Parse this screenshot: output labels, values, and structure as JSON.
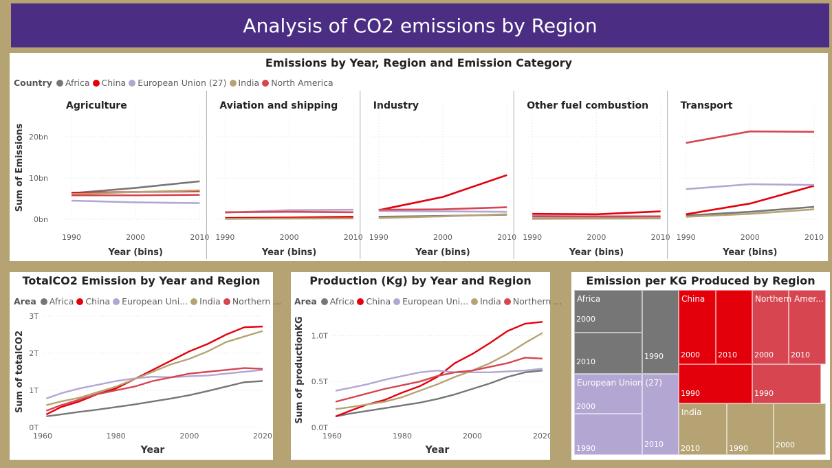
{
  "page_title": "Analysis of CO2 emissions by Region",
  "top": {
    "title": "Emissions by Year, Region and Emission Category",
    "legend_title": "Country",
    "yaxis_title": "Sum of Emissions",
    "xaxis_title": "Year (bins)"
  },
  "total": {
    "title": "TotalCO2 Emission by Year and Region",
    "legend_title": "Area",
    "yaxis_title": "Sum of totalCO2",
    "xaxis_title": "Year"
  },
  "prod": {
    "title": "Production (Kg) by Year and Region",
    "legend_title": "Area",
    "yaxis_title": "Sum of productionKG",
    "xaxis_title": "Year"
  },
  "tree": {
    "title": "Emission per KG Produced by Region"
  },
  "colors": {
    "Africa": "#767676",
    "China": "#e3000b",
    "European Union (27)": "#b3a6d3",
    "India": "#b5a373",
    "North America": "#d64550",
    "banner": "#4b2e83"
  },
  "chart_data": [
    {
      "type": "line",
      "title": "Emissions by Year, Region and Emission Category",
      "xlabel": "Year (bins)",
      "ylabel": "Sum of Emissions",
      "legend_title": "Country",
      "legend": [
        "Africa",
        "China",
        "European Union (27)",
        "India",
        "North America"
      ],
      "y_ticks": [
        "0bn",
        "10bn",
        "20bn"
      ],
      "ylim": [
        0,
        25
      ],
      "x": [
        "1990",
        "2000",
        "2010"
      ],
      "facets": [
        {
          "name": "Agriculture",
          "series": [
            {
              "name": "Africa",
              "values": [
                6.3,
                7.6,
                9.2
              ]
            },
            {
              "name": "China",
              "values": [
                6.4,
                6.6,
                6.8
              ]
            },
            {
              "name": "European Union (27)",
              "values": [
                4.5,
                4.1,
                3.9
              ]
            },
            {
              "name": "India",
              "values": [
                6.1,
                6.6,
                7.0
              ]
            },
            {
              "name": "North America",
              "values": [
                5.8,
                5.8,
                5.9
              ]
            }
          ]
        },
        {
          "name": "Aviation and shipping",
          "series": [
            {
              "name": "Africa",
              "values": [
                0.2,
                0.25,
                0.3
              ]
            },
            {
              "name": "China",
              "values": [
                0.3,
                0.4,
                0.6
              ]
            },
            {
              "name": "European Union (27)",
              "values": [
                1.6,
                2.2,
                2.3
              ]
            },
            {
              "name": "India",
              "values": [
                0.1,
                0.15,
                0.2
              ]
            },
            {
              "name": "North America",
              "values": [
                1.7,
                1.8,
                1.7
              ]
            }
          ]
        },
        {
          "name": "Industry",
          "series": [
            {
              "name": "Africa",
              "values": [
                0.6,
                0.8,
                1.1
              ]
            },
            {
              "name": "China",
              "values": [
                2.2,
                5.4,
                10.7
              ]
            },
            {
              "name": "European Union (27)",
              "values": [
                2.0,
                1.9,
                1.8
              ]
            },
            {
              "name": "India",
              "values": [
                0.3,
                0.7,
                1.2
              ]
            },
            {
              "name": "North America",
              "values": [
                2.3,
                2.4,
                2.9
              ]
            }
          ]
        },
        {
          "name": "Other fuel combustion",
          "series": [
            {
              "name": "Africa",
              "values": [
                0.2,
                0.25,
                0.3
              ]
            },
            {
              "name": "China",
              "values": [
                1.3,
                1.2,
                1.9
              ]
            },
            {
              "name": "European Union (27)",
              "values": [
                0.8,
                0.7,
                0.6
              ]
            },
            {
              "name": "India",
              "values": [
                0.1,
                0.15,
                0.2
              ]
            },
            {
              "name": "North America",
              "values": [
                0.7,
                0.7,
                0.7
              ]
            }
          ]
        },
        {
          "name": "Transport",
          "series": [
            {
              "name": "Africa",
              "values": [
                0.9,
                1.8,
                3.0
              ]
            },
            {
              "name": "China",
              "values": [
                1.2,
                3.8,
                8.1
              ]
            },
            {
              "name": "European Union (27)",
              "values": [
                7.3,
                8.5,
                8.3
              ]
            },
            {
              "name": "India",
              "values": [
                0.6,
                1.3,
                2.4
              ]
            },
            {
              "name": "North America",
              "values": [
                18.5,
                21.3,
                21.2
              ]
            }
          ]
        }
      ]
    },
    {
      "type": "line",
      "title": "TotalCO2 Emission by Year and Region",
      "xlabel": "Year",
      "ylabel": "Sum of totalCO2",
      "legend_title": "Area",
      "legend": [
        "Africa",
        "China",
        "European Uni...",
        "India",
        "Northern ..."
      ],
      "x_ticks": [
        "1960",
        "1980",
        "2000",
        "2020"
      ],
      "xlim": [
        1960,
        2020
      ],
      "y_ticks": [
        "0T",
        "1T",
        "2T",
        "3T"
      ],
      "ylim": [
        0,
        3
      ],
      "x": [
        1961,
        1965,
        1970,
        1975,
        1980,
        1985,
        1990,
        1995,
        2000,
        2005,
        2010,
        2015,
        2020
      ],
      "series": [
        {
          "name": "Africa",
          "values": [
            0.3,
            0.35,
            0.42,
            0.48,
            0.55,
            0.62,
            0.7,
            0.78,
            0.87,
            0.98,
            1.1,
            1.22,
            1.25
          ]
        },
        {
          "name": "China",
          "values": [
            0.35,
            0.55,
            0.7,
            0.9,
            1.05,
            1.3,
            1.55,
            1.8,
            2.05,
            2.25,
            2.5,
            2.7,
            2.72
          ]
        },
        {
          "name": "European Union (27)",
          "values": [
            0.78,
            0.92,
            1.05,
            1.15,
            1.25,
            1.32,
            1.37,
            1.35,
            1.38,
            1.4,
            1.45,
            1.5,
            1.55
          ]
        },
        {
          "name": "India",
          "values": [
            0.6,
            0.7,
            0.8,
            0.95,
            1.1,
            1.3,
            1.5,
            1.7,
            1.85,
            2.05,
            2.3,
            2.45,
            2.6
          ]
        },
        {
          "name": "Northern America",
          "values": [
            0.45,
            0.6,
            0.75,
            0.9,
            1.0,
            1.1,
            1.25,
            1.35,
            1.45,
            1.5,
            1.55,
            1.6,
            1.58
          ]
        }
      ]
    },
    {
      "type": "line",
      "title": "Production (Kg) by Year and Region",
      "xlabel": "Year",
      "ylabel": "Sum of productionKG",
      "legend_title": "Area",
      "legend": [
        "Africa",
        "China",
        "European Uni...",
        "India",
        "Northern ..."
      ],
      "x_ticks": [
        "1960",
        "1980",
        "2000",
        "2020"
      ],
      "xlim": [
        1960,
        2020
      ],
      "y_ticks": [
        "0.0T",
        "0.5T",
        "1.0T"
      ],
      "ylim": [
        0,
        1.25
      ],
      "x": [
        1961,
        1965,
        1970,
        1975,
        1980,
        1985,
        1990,
        1995,
        2000,
        2005,
        2010,
        2015,
        2020
      ],
      "series": [
        {
          "name": "Africa",
          "values": [
            0.12,
            0.15,
            0.18,
            0.21,
            0.24,
            0.27,
            0.31,
            0.36,
            0.42,
            0.48,
            0.55,
            0.6,
            0.62
          ]
        },
        {
          "name": "China",
          "values": [
            0.12,
            0.18,
            0.25,
            0.3,
            0.38,
            0.45,
            0.55,
            0.7,
            0.8,
            0.92,
            1.05,
            1.13,
            1.15
          ]
        },
        {
          "name": "European Union (27)",
          "values": [
            0.4,
            0.43,
            0.47,
            0.52,
            0.56,
            0.6,
            0.62,
            0.6,
            0.6,
            0.6,
            0.61,
            0.62,
            0.64
          ]
        },
        {
          "name": "India",
          "values": [
            0.2,
            0.22,
            0.25,
            0.28,
            0.33,
            0.4,
            0.47,
            0.55,
            0.62,
            0.7,
            0.8,
            0.92,
            1.03
          ]
        },
        {
          "name": "Northern America",
          "values": [
            0.28,
            0.32,
            0.37,
            0.42,
            0.46,
            0.5,
            0.56,
            0.6,
            0.62,
            0.66,
            0.7,
            0.76,
            0.75
          ]
        }
      ]
    },
    {
      "type": "treemap",
      "title": "Emission per KG Produced by Region",
      "groups": [
        {
          "name": "Africa",
          "children": [
            "2000",
            "2010",
            "1990"
          ]
        },
        {
          "name": "China",
          "children": [
            "2000",
            "2010",
            "1990"
          ]
        },
        {
          "name": "Northern Amer...",
          "children": [
            "2000",
            "2010",
            "1990"
          ]
        },
        {
          "name": "European Union (27)",
          "children": [
            "2000",
            "1990",
            "2010"
          ]
        },
        {
          "name": "India",
          "children": [
            "2010",
            "1990",
            "2000"
          ]
        }
      ]
    }
  ]
}
